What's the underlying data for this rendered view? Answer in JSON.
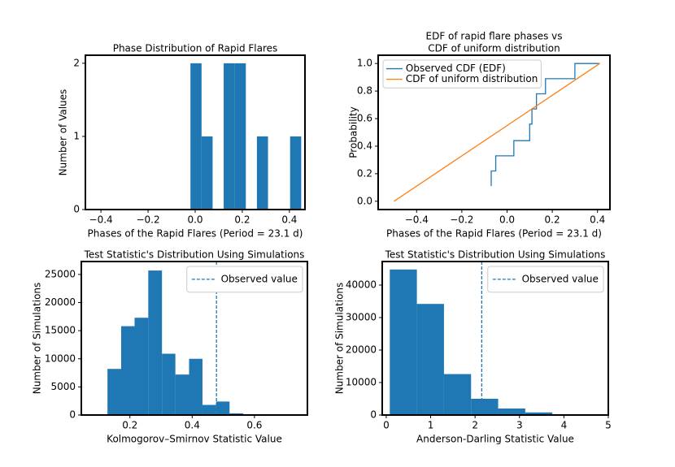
{
  "chart_data": [
    {
      "type": "histogram",
      "title": "Phase Distribution of Rapid Flares",
      "xlabel": "Phases of the Rapid Flares (Period = 23.1 d)",
      "ylabel": "Number of Values",
      "bins": [
        -0.02,
        0.027,
        0.074,
        0.121,
        0.168,
        0.215,
        0.262,
        0.309,
        0.356,
        0.403,
        0.45
      ],
      "values": [
        2,
        1,
        0,
        2,
        2,
        0,
        1,
        0,
        0,
        1
      ],
      "color": "#1f77b4",
      "xlim": [
        -0.466,
        0.466
      ],
      "xticks": [
        {
          "value": -0.4,
          "label": "−0.4"
        },
        {
          "value": -0.2,
          "label": "−0.2"
        },
        {
          "value": 0,
          "label": "0.0"
        },
        0.2,
        0.4
      ],
      "ylim": [
        0,
        2.11
      ],
      "yticks": [
        0,
        1,
        2
      ]
    },
    {
      "type": "line",
      "title": [
        "EDF of rapid flare phases vs",
        "CDF of uniform distribution"
      ],
      "xlabel": "Phases of the Rapid Flares (Period = 23.1 d)",
      "ylabel": "Probability",
      "series": [
        {
          "name": "Observed CDF (EDF)",
          "color": "#1f77b4",
          "drawstyle": "steps-pre",
          "x": [
            -0.07,
            -0.05,
            0.03,
            0.1,
            0.11,
            0.13,
            0.17,
            0.3,
            0.41
          ],
          "values": [
            0.11,
            0.22,
            0.33,
            0.44,
            0.56,
            0.67,
            0.78,
            0.89,
            1.0
          ]
        },
        {
          "name": "CDF of uniform distribution",
          "color": "#ff7f0e",
          "x": [
            -0.5,
            0.41
          ],
          "values": [
            0,
            1
          ]
        }
      ],
      "legend": "upper left",
      "xlim": [
        -0.57,
        0.455
      ],
      "xticks": [
        {
          "value": -0.4,
          "label": "−0.4"
        },
        {
          "value": -0.2,
          "label": "−0.2"
        },
        {
          "value": 0,
          "label": "0.0"
        },
        0.2,
        0.4
      ],
      "ylim": [
        -0.06,
        1.06
      ],
      "yticks": [
        {
          "value": 0,
          "label": "0.0"
        },
        0.2,
        0.4,
        0.6,
        0.8,
        {
          "value": 1,
          "label": "1.0"
        }
      ]
    },
    {
      "type": "histogram",
      "title": "Test Statistic's Distribution Using Simulations",
      "xlabel": "Kolmogorov–Smirnov Statistic Value",
      "ylabel": "Number of Simulations",
      "bins": [
        0.085,
        0.128,
        0.172,
        0.215,
        0.259,
        0.303,
        0.346,
        0.39,
        0.433,
        0.477,
        0.52,
        0.564,
        0.608,
        0.651,
        0.695,
        0.738
      ],
      "values": [
        50,
        8200,
        15800,
        17300,
        25700,
        10900,
        7200,
        10000,
        1800,
        2400,
        300,
        100,
        0,
        0,
        20
      ],
      "color": "#1f77b4",
      "vlines": [
        {
          "name": "Observed value",
          "x": 0.478,
          "color": "#1f77b4",
          "style": "dashed"
        }
      ],
      "legend": "upper right",
      "xlim": [
        0.044,
        0.77
      ],
      "xticks": [
        0.2,
        0.4,
        0.6
      ],
      "ylim": [
        0,
        27300
      ],
      "yticks": [
        0,
        5000,
        10000,
        15000,
        20000,
        25000
      ]
    },
    {
      "type": "histogram",
      "title": "Test Statistic's Distribution Using Simulations",
      "xlabel": "Anderson-Darling Statistic Value",
      "ylabel": "Number of Simulations",
      "bins": [
        0.08,
        0.69,
        1.3,
        1.91,
        2.52,
        3.13,
        3.74,
        4.35,
        4.96
      ],
      "values": [
        44800,
        34200,
        12600,
        5000,
        2000,
        800,
        200,
        50
      ],
      "color": "#1f77b4",
      "vlines": [
        {
          "name": "Observed value",
          "x": 2.15,
          "color": "#1f77b4",
          "style": "dashed"
        }
      ],
      "legend": "upper right",
      "xlim": [
        -0.09,
        5.0
      ],
      "xticks": [
        0,
        1,
        2,
        3,
        4,
        5
      ],
      "ylim": [
        0,
        47250
      ],
      "yticks": [
        0,
        10000,
        20000,
        30000,
        40000
      ]
    }
  ]
}
